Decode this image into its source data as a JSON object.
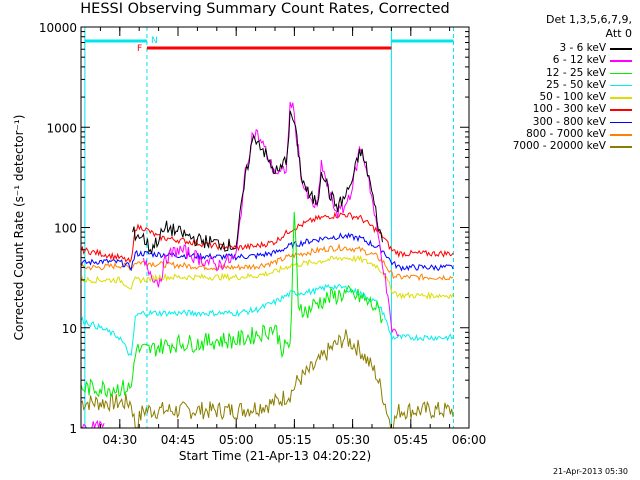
{
  "chart_data": {
    "type": "line",
    "title": "HESSI Observing Summary Count Rates, Corrected",
    "xlabel": "Start Time (21-Apr-13 04:20:22)",
    "ylabel": "Corrected Count Rate (s⁻¹ detector⁻¹)",
    "y_scale": "log",
    "ylim": [
      1,
      10000
    ],
    "xlim": [
      "04:20",
      "06:00"
    ],
    "x_ticks": [
      "04:30",
      "04:45",
      "05:00",
      "05:15",
      "05:30",
      "05:45",
      "06:00"
    ],
    "y_ticks": [
      "1",
      "10",
      "100",
      "1000",
      "10000"
    ],
    "legend_title": [
      "Det 1,3,5,6,7,9,",
      "Att 0"
    ],
    "legend_position": "right",
    "flags": [
      {
        "label": "F",
        "color": "#ff0000",
        "start": "04:37",
        "end": "05:40"
      },
      {
        "label": "N",
        "color": "#00e5ee"
      }
    ],
    "night_markers": [
      {
        "time": "04:21",
        "color": "#00e5ee",
        "style": "solid"
      },
      {
        "time": "04:37",
        "color": "#00e5ee",
        "style": "dashed"
      },
      {
        "time": "05:40",
        "color": "#00e5ee",
        "style": "solid"
      },
      {
        "time": "05:56",
        "color": "#00e5ee",
        "style": "dashed"
      }
    ],
    "series": [
      {
        "name": "3 - 6 keV",
        "color": "#000000",
        "x": [
          "04:20",
          "04:30",
          "04:33",
          "04:36",
          "04:38",
          "04:42",
          "04:45",
          "04:50",
          "04:55",
          "05:00",
          "05:02",
          "05:04",
          "05:05",
          "05:07",
          "05:09",
          "05:11",
          "05:13",
          "05:14",
          "05:15",
          "05:17",
          "05:19",
          "05:21",
          "05:22",
          "05:24",
          "05:26",
          "05:28",
          "05:30",
          "05:32",
          "05:34",
          "05:36",
          "05:38",
          "05:40",
          "05:45",
          "05:50",
          "05:56"
        ],
        "values": [
          null,
          null,
          90,
          80,
          60,
          100,
          90,
          75,
          70,
          65,
          250,
          700,
          800,
          600,
          400,
          350,
          500,
          1400,
          1100,
          300,
          200,
          180,
          400,
          220,
          160,
          200,
          300,
          600,
          350,
          140,
          60,
          null,
          null,
          null,
          null
        ]
      },
      {
        "name": "6 - 12 keV",
        "color": "#ff00ff",
        "x": [
          "04:20",
          "04:22",
          "04:24",
          "04:26",
          "04:30",
          "04:33",
          "04:36",
          "04:40",
          "04:42",
          "04:45",
          "04:48",
          "04:50",
          "04:55",
          "05:00",
          "05:02",
          "05:04",
          "05:05",
          "05:07",
          "05:09",
          "05:11",
          "05:13",
          "05:14",
          "05:15",
          "05:17",
          "05:19",
          "05:21",
          "05:22",
          "05:24",
          "05:26",
          "05:28",
          "05:30",
          "05:32",
          "05:34",
          "05:36",
          "05:38",
          "05:40",
          "05:42",
          "05:44",
          "05:46",
          "05:50",
          "05:56"
        ],
        "values": [
          1,
          1,
          1,
          1,
          null,
          null,
          45,
          28,
          50,
          60,
          55,
          50,
          42,
          50,
          280,
          800,
          900,
          650,
          420,
          330,
          400,
          2000,
          1250,
          280,
          180,
          160,
          450,
          210,
          140,
          160,
          260,
          650,
          340,
          110,
          40,
          10,
          8,
          null,
          null,
          null,
          null
        ]
      },
      {
        "name": "12 - 25 keV",
        "color": "#00ee00",
        "x": [
          "04:20",
          "04:25",
          "04:30",
          "04:33",
          "04:34",
          "04:36",
          "04:38",
          "04:40",
          "04:45",
          "04:50",
          "04:55",
          "05:00",
          "05:05",
          "05:10",
          "05:12",
          "05:14",
          "05:15",
          "05:16",
          "05:18",
          "05:20",
          "05:24",
          "05:28",
          "05:32",
          "05:36",
          "05:38",
          "05:40",
          "05:42",
          "05:44",
          "05:46",
          "05:50",
          "05:56"
        ],
        "values": [
          2.5,
          2.5,
          2.5,
          2.5,
          6,
          6,
          6,
          6.5,
          7,
          7,
          7.5,
          7.5,
          8.5,
          10,
          6,
          7,
          140,
          18,
          14,
          17,
          20,
          22,
          20,
          16,
          12,
          null,
          null,
          null,
          null,
          null,
          null
        ]
      },
      {
        "name": "25 - 50 keV",
        "color": "#00eeee",
        "x": [
          "04:20",
          "04:25",
          "04:30",
          "04:33",
          "04:34",
          "04:36",
          "04:38",
          "04:40",
          "04:45",
          "04:50",
          "04:55",
          "05:00",
          "05:05",
          "05:10",
          "05:14",
          "05:20",
          "05:24",
          "05:28",
          "05:32",
          "05:36",
          "05:38",
          "05:40",
          "05:42",
          "05:44",
          "05:46",
          "05:50",
          "05:56"
        ],
        "values": [
          12,
          10,
          8,
          5,
          13,
          14,
          14,
          14,
          14,
          14,
          14,
          14,
          15,
          18,
          22,
          23,
          26,
          25,
          22,
          18,
          14,
          8,
          8,
          8,
          8,
          8,
          8
        ]
      },
      {
        "name": "50 - 100 keV",
        "color": "#dddd00",
        "x": [
          "04:20",
          "04:25",
          "04:30",
          "04:33",
          "04:34",
          "04:36",
          "04:40",
          "04:45",
          "04:50",
          "04:55",
          "05:00",
          "05:05",
          "05:10",
          "05:14",
          "05:20",
          "05:24",
          "05:28",
          "05:32",
          "05:36",
          "05:38",
          "05:40",
          "05:42",
          "05:46",
          "05:50",
          "05:56"
        ],
        "values": [
          30,
          30,
          30,
          25,
          30,
          30,
          32,
          32,
          32,
          32,
          32,
          33,
          36,
          42,
          45,
          48,
          50,
          48,
          42,
          35,
          24,
          21,
          21,
          21,
          21
        ]
      },
      {
        "name": "100 - 300 keV",
        "color": "#ff0000",
        "x": [
          "04:20",
          "04:25",
          "04:30",
          "04:33",
          "04:34",
          "04:36",
          "04:40",
          "04:45",
          "04:50",
          "04:55",
          "05:00",
          "05:05",
          "05:10",
          "05:14",
          "05:20",
          "05:24",
          "05:28",
          "05:32",
          "05:36",
          "05:38",
          "05:40",
          "05:42",
          "05:46",
          "05:50",
          "05:56"
        ],
        "values": [
          60,
          55,
          50,
          45,
          100,
          100,
          80,
          75,
          70,
          65,
          63,
          65,
          72,
          95,
          120,
          130,
          135,
          125,
          95,
          80,
          60,
          55,
          55,
          55,
          55
        ]
      },
      {
        "name": "300 - 800 keV",
        "color": "#0000ff",
        "x": [
          "04:20",
          "04:25",
          "04:30",
          "04:33",
          "04:34",
          "04:36",
          "04:40",
          "04:45",
          "04:50",
          "04:55",
          "05:00",
          "05:05",
          "05:10",
          "05:14",
          "05:20",
          "05:24",
          "05:28",
          "05:32",
          "05:36",
          "05:38",
          "05:40",
          "05:42",
          "05:46",
          "05:50",
          "05:56"
        ],
        "values": [
          44,
          46,
          45,
          40,
          55,
          55,
          54,
          53,
          52,
          51,
          51,
          52,
          56,
          66,
          75,
          80,
          82,
          78,
          65,
          58,
          45,
          40,
          40,
          40,
          40
        ]
      },
      {
        "name": "800 - 7000 keV",
        "color": "#ff8000",
        "x": [
          "04:20",
          "04:25",
          "04:30",
          "04:33",
          "04:34",
          "04:36",
          "04:40",
          "04:45",
          "04:50",
          "04:55",
          "05:00",
          "05:05",
          "05:10",
          "05:14",
          "05:20",
          "05:24",
          "05:28",
          "05:32",
          "05:36",
          "05:38",
          "05:40",
          "05:42",
          "05:46",
          "05:50",
          "05:56"
        ],
        "values": [
          40,
          40,
          42,
          40,
          45,
          45,
          43,
          42,
          41,
          40,
          40,
          41,
          45,
          52,
          58,
          62,
          63,
          60,
          52,
          45,
          34,
          32,
          32,
          32,
          32
        ]
      },
      {
        "name": "7000 - 20000 keV",
        "color": "#8b7d00",
        "x": [
          "04:20",
          "04:25",
          "04:30",
          "04:33",
          "04:34",
          "04:36",
          "04:40",
          "04:45",
          "04:50",
          "04:55",
          "05:00",
          "05:05",
          "05:10",
          "05:14",
          "05:16",
          "05:20",
          "05:24",
          "05:28",
          "05:32",
          "05:36",
          "05:38",
          "05:40",
          "05:42",
          "05:46",
          "05:50",
          "05:56"
        ],
        "values": [
          1.8,
          1.8,
          1.8,
          1.8,
          1,
          1.5,
          1.5,
          1.5,
          1.5,
          1.5,
          1.5,
          1.6,
          1.8,
          2.2,
          3,
          4,
          6,
          8,
          6,
          3.5,
          2,
          1,
          1.5,
          1.5,
          1.5,
          1.5
        ]
      }
    ]
  },
  "footer_stamp": "21-Apr-2013 05:30"
}
